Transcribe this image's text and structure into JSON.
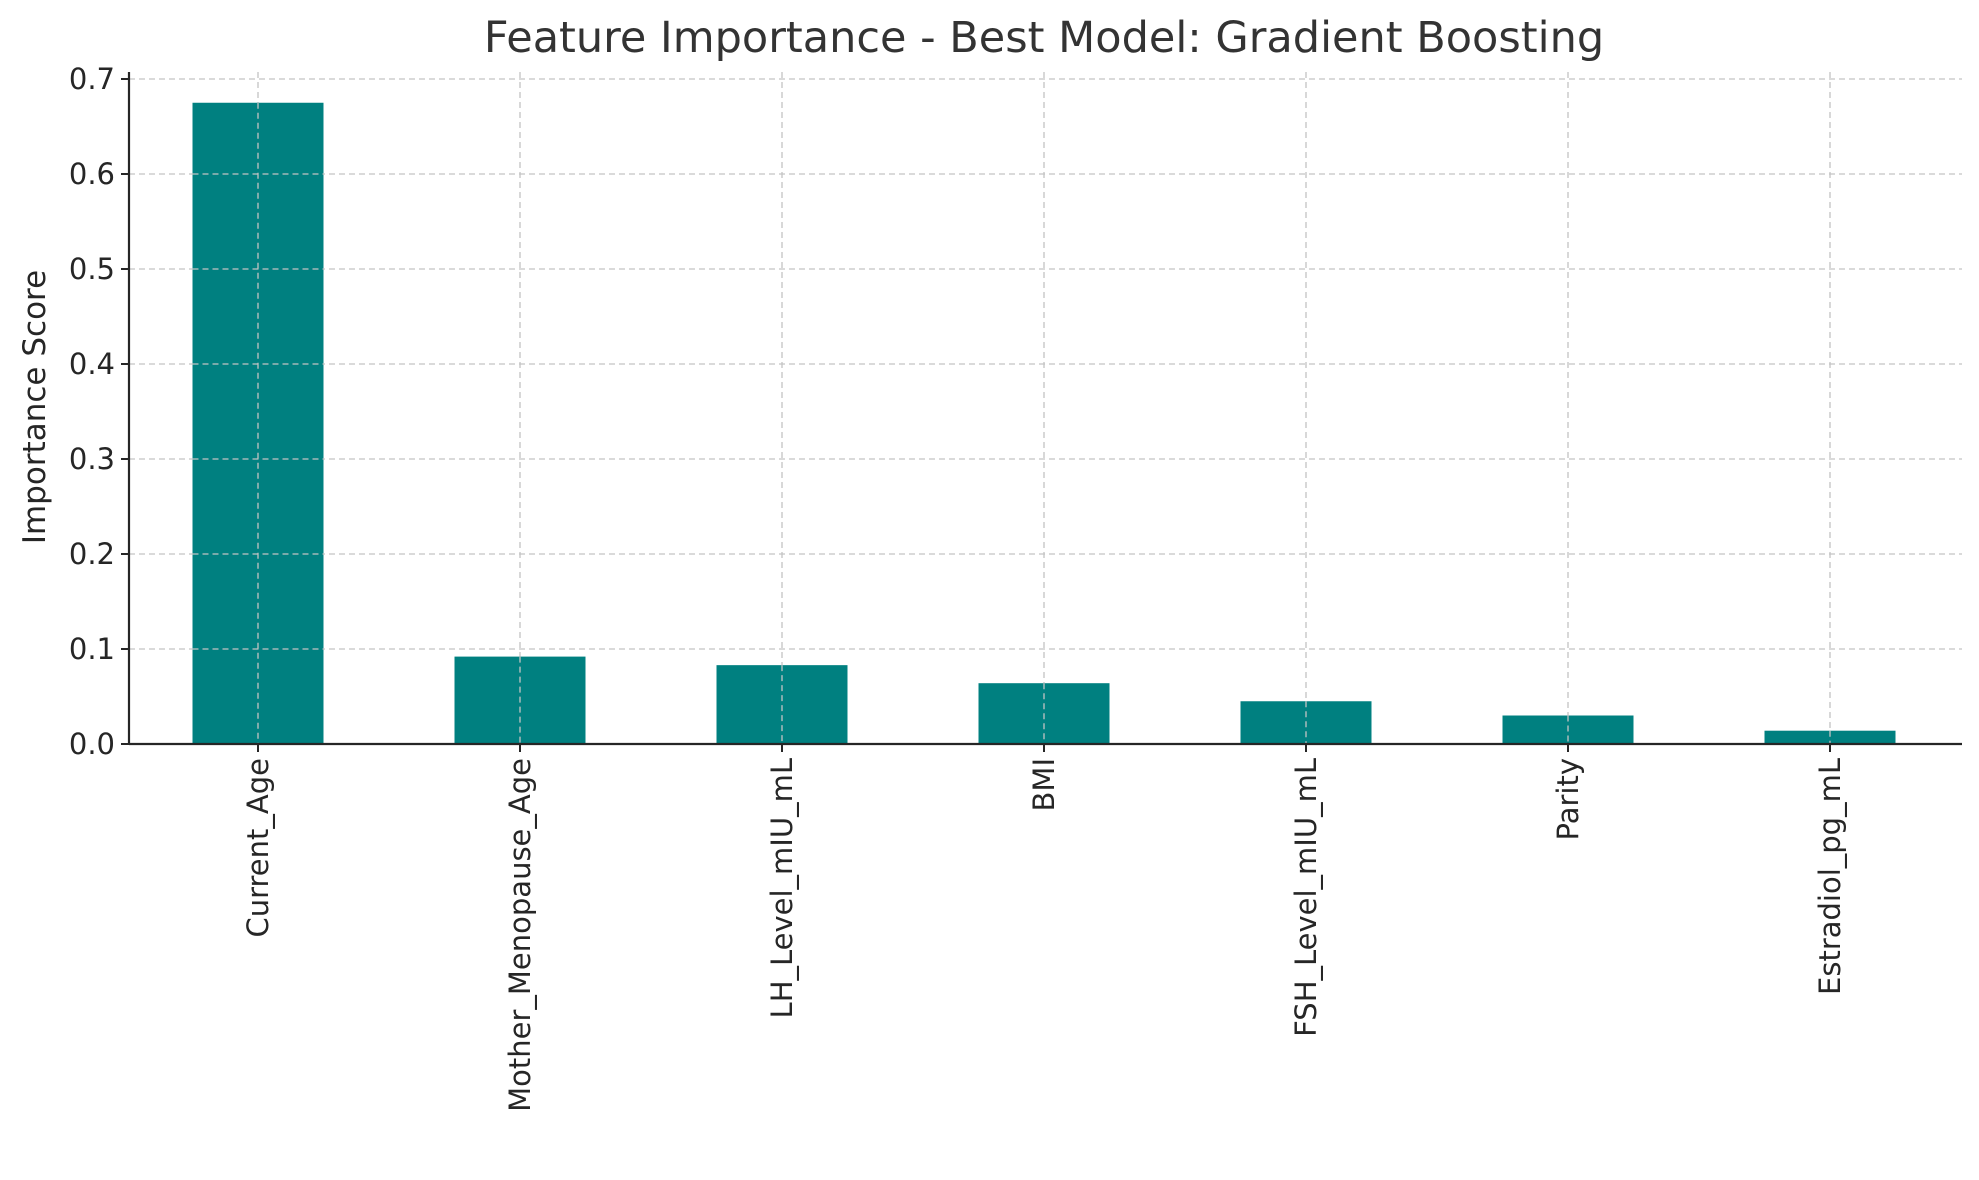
{
  "chart_data": {
    "type": "bar",
    "title": "Feature Importance - Best Model: Gradient Boosting",
    "xlabel": "",
    "ylabel": "Importance Score",
    "categories": [
      "Current_Age",
      "Mother_Menopause_Age",
      "LH_Level_mIU_mL",
      "BMI",
      "FSH_Level_mIU_mL",
      "Parity",
      "Estradiol_pg_mL"
    ],
    "values": [
      0.675,
      0.092,
      0.083,
      0.064,
      0.045,
      0.03,
      0.014
    ],
    "ylim": [
      0,
      0.7
    ],
    "yticks": [
      0.0,
      0.1,
      0.2,
      0.3,
      0.4,
      0.5,
      0.6,
      0.7
    ],
    "ytick_labels": [
      "0.0",
      "0.1",
      "0.2",
      "0.3",
      "0.4",
      "0.5",
      "0.6",
      "0.7"
    ],
    "grid": true,
    "bar_color": "#008080"
  }
}
